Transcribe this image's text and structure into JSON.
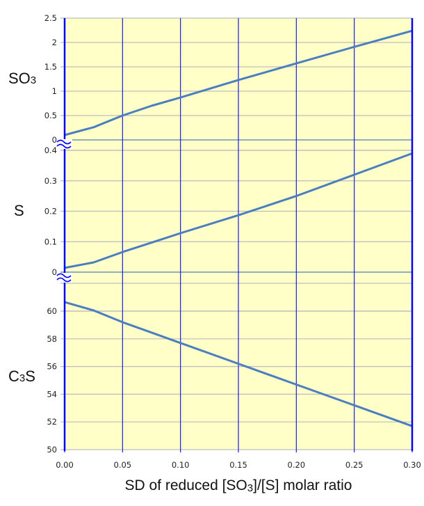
{
  "chart_data": {
    "type": "line",
    "xlabel": "SD of reduced [SO3]/[S] molar ratio",
    "xlabel_parts": {
      "pre": "SD of reduced [SO",
      "sub": "3",
      "post": "]/[S] molar ratio"
    },
    "x": [
      0.0,
      0.025,
      0.05,
      0.075,
      0.1,
      0.15,
      0.2,
      0.25,
      0.3
    ],
    "x_ticks": [
      "0.00",
      "0.05",
      "0.10",
      "0.15",
      "0.20",
      "0.25",
      "0.30"
    ],
    "xlim": [
      0,
      0.3
    ],
    "grid": true,
    "background": "#FFFFC8",
    "line_color": "#4A7EC0",
    "vgrid_color": "#1A1AE6",
    "panels": [
      {
        "name": "SO3",
        "label": "SO3",
        "label_parts": {
          "pre": "SO",
          "sub": "3",
          "post": ""
        },
        "ylim": [
          0,
          2.5
        ],
        "y_ticks": [
          "0",
          "0.5",
          "1",
          "1.5",
          "2",
          "2.5"
        ],
        "values": [
          0.1,
          0.26,
          0.5,
          0.7,
          0.87,
          1.23,
          1.57,
          1.91,
          2.24
        ]
      },
      {
        "name": "S",
        "label": "S",
        "label_parts": {
          "pre": "S",
          "sub": "",
          "post": ""
        },
        "ylim": [
          0,
          0.4
        ],
        "y_ticks": [
          "0",
          "0.1",
          "0.2",
          "0.3",
          "0.4"
        ],
        "values": [
          0.014,
          0.032,
          0.066,
          0.097,
          0.128,
          0.187,
          0.25,
          0.32,
          0.39
        ]
      },
      {
        "name": "C3S",
        "label": "C3S",
        "label_parts": {
          "pre": "C",
          "sub": "3",
          "post": "S"
        },
        "ylim": [
          50,
          61
        ],
        "y_ticks": [
          "50",
          "52",
          "54",
          "56",
          "58",
          "60"
        ],
        "values": [
          60.65,
          60.05,
          59.2,
          58.45,
          57.7,
          56.2,
          54.7,
          53.2,
          51.7
        ]
      }
    ],
    "annotations": [
      "axis break marks between panels"
    ]
  }
}
